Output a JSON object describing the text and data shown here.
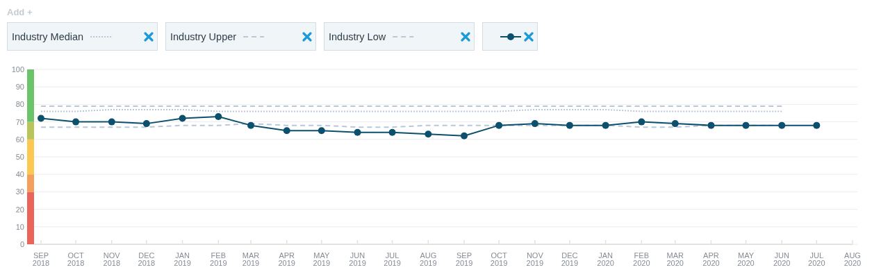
{
  "chart_data": {
    "type": "line",
    "annotations": [
      "Add +"
    ],
    "x": [
      "2018-09",
      "2018-10",
      "2018-11",
      "2018-12",
      "2019-01",
      "2019-02",
      "2019-03",
      "2019-04",
      "2019-05",
      "2019-06",
      "2019-07",
      "2019-08",
      "2019-09",
      "2019-10",
      "2019-11",
      "2019-12",
      "2020-01",
      "2020-02",
      "2020-03",
      "2020-04",
      "2020-05",
      "2020-06",
      "2020-07"
    ],
    "series": [
      {
        "name": "Industry Median",
        "color": "#b9c7db",
        "line_style": "dotted",
        "marker": "none",
        "values": [
          76,
          76,
          77,
          77,
          77,
          76,
          76,
          76,
          76,
          76,
          76,
          76,
          76,
          76,
          77,
          77,
          77,
          76,
          76,
          76,
          76,
          76,
          null
        ]
      },
      {
        "name": "Industry Upper",
        "color": "#b9c7db",
        "line_style": "dashed",
        "marker": "none",
        "values": [
          79,
          79,
          79,
          79,
          79,
          79,
          79,
          79,
          79,
          79,
          79,
          79,
          79,
          79,
          79,
          79,
          79,
          79,
          79,
          79,
          79,
          79,
          null
        ]
      },
      {
        "name": "Industry Low",
        "color": "#b9c7db",
        "line_style": "dashed",
        "marker": "none",
        "values": [
          67,
          67,
          67,
          67,
          68,
          68,
          69,
          68,
          68,
          67,
          67,
          68,
          68,
          68,
          68,
          68,
          68,
          67,
          67,
          68,
          68,
          68,
          null
        ]
      },
      {
        "color": "#0d506e",
        "line_style": "solid",
        "marker": "circle",
        "values": [
          72,
          70,
          70,
          69,
          72,
          73,
          68,
          65,
          65,
          64,
          64,
          63,
          62,
          68,
          69,
          68,
          68,
          70,
          69,
          68,
          68,
          68,
          68
        ]
      }
    ],
    "xlim": [
      "2018-08-26",
      "2020-08-01"
    ],
    "xticks": [
      {
        "value": "2018-09",
        "label": "SEP\n2018"
      },
      {
        "value": "2018-10",
        "label": "OCT\n2018"
      },
      {
        "value": "2018-11",
        "label": "NOV\n2018"
      },
      {
        "value": "2018-12",
        "label": "DEC\n2018"
      },
      {
        "value": "2019-01",
        "label": "JAN\n2019"
      },
      {
        "value": "2019-02",
        "label": "FEB\n2019"
      },
      {
        "value": "2019-03",
        "label": "MAR\n2019"
      },
      {
        "value": "2019-04",
        "label": "APR\n2019"
      },
      {
        "value": "2019-05",
        "label": "MAY\n2019"
      },
      {
        "value": "2019-06",
        "label": "JUN\n2019"
      },
      {
        "value": "2019-07",
        "label": "JUL\n2019"
      },
      {
        "value": "2019-08",
        "label": "AUG\n2019"
      },
      {
        "value": "2019-09",
        "label": "SEP\n2019"
      },
      {
        "value": "2019-10",
        "label": "OCT\n2019"
      },
      {
        "value": "2019-11",
        "label": "NOV\n2019"
      },
      {
        "value": "2019-12",
        "label": "DEC\n2019"
      },
      {
        "value": "2020-01",
        "label": "JAN\n2020"
      },
      {
        "value": "2020-02",
        "label": "FEB\n2020"
      },
      {
        "value": "2020-03",
        "label": "MAR\n2020"
      },
      {
        "value": "2020-04",
        "label": "APR\n2020"
      },
      {
        "value": "2020-05",
        "label": "MAY\n2020"
      },
      {
        "value": "2020-06",
        "label": "JUN\n2020"
      },
      {
        "value": "2020-07",
        "label": "JUL\n2020"
      },
      {
        "value": "2020-08",
        "label": "AUG\n2020"
      }
    ],
    "ylim": [
      0,
      100
    ],
    "yticks": [
      0,
      10,
      20,
      30,
      40,
      50,
      60,
      70,
      80,
      90,
      100
    ],
    "grid": "y",
    "legend": "top left"
  }
}
